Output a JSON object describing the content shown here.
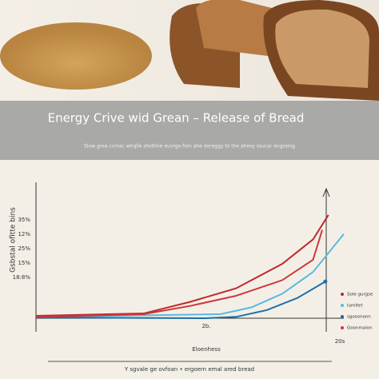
{
  "chart_data": {
    "type": "line",
    "title": "Energy Crive wid Grean – Release of  Bread",
    "subtitle": "Slow grea ccmac whqlle shothhe euvrgo fom ahe dereggy to the ahesy ssucar engraing",
    "y_label": "Gsbstal ofitte bins",
    "x_label": "Eloenhess",
    "caption": "Y sgvale ge ovfoan • ergoern emal ared bread",
    "ytick_labels": [
      "35%",
      "12%",
      "25%",
      "15%",
      "18:8%"
    ],
    "xtick_labels": [
      "2b.",
      "20s"
    ],
    "xlim": [
      0,
      100
    ],
    "ylim": [
      0,
      100
    ],
    "series": [
      {
        "name": "Sole gurgse",
        "color": "#c0272d",
        "x": [
          0,
          35,
          50,
          65,
          80,
          90,
          95
        ],
        "values": [
          1.8,
          3.5,
          12,
          22,
          40,
          58,
          76
        ]
      },
      {
        "name": "lumitet",
        "color": "#5bb8e0",
        "x": [
          0,
          60,
          70,
          80,
          90,
          100
        ],
        "values": [
          1,
          3,
          8,
          18,
          34,
          62
        ]
      },
      {
        "name": "sgoosnonn",
        "color": "#1b6fa8",
        "x": [
          0,
          55,
          65,
          75,
          85,
          94
        ],
        "values": [
          0.6,
          0,
          1,
          6,
          15,
          27
        ]
      },
      {
        "name": "Goonmaion",
        "color": "#d0343a",
        "x": [
          0,
          35,
          50,
          65,
          80,
          90,
          93
        ],
        "values": [
          1,
          3,
          9,
          16.5,
          28,
          43,
          65
        ]
      }
    ]
  }
}
